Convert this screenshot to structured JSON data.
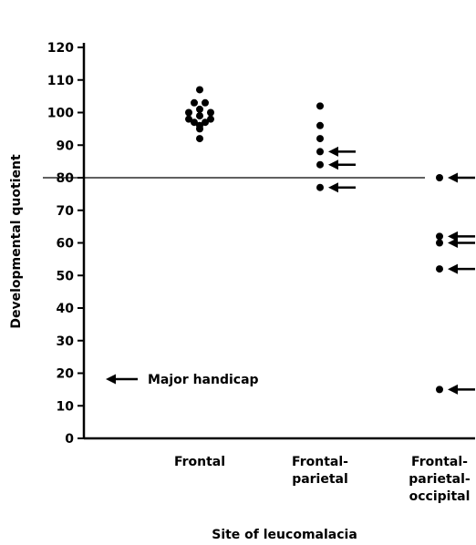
{
  "chart_data": {
    "type": "scatter",
    "xlabel": "Site of leucomalacia",
    "ylabel": "Developmental quotient",
    "ylim": [
      0,
      120
    ],
    "yticks": [
      0,
      10,
      20,
      30,
      40,
      50,
      60,
      70,
      80,
      90,
      100,
      110,
      120
    ],
    "categories": [
      {
        "label_lines": [
          "Frontal"
        ]
      },
      {
        "label_lines": [
          "Frontal-",
          "parietal"
        ]
      },
      {
        "label_lines": [
          "Frontal-",
          "parietal-",
          "occipital"
        ]
      }
    ],
    "reference_line": {
      "y": 80
    },
    "legend": {
      "text": "Major handicap",
      "symbol": "arrow",
      "placement": "bottom-left"
    },
    "points": [
      {
        "category": 0,
        "y": 107,
        "offset": 0,
        "major_handicap": false
      },
      {
        "category": 0,
        "y": 103,
        "offset": -1,
        "major_handicap": false
      },
      {
        "category": 0,
        "y": 103,
        "offset": 1,
        "major_handicap": false
      },
      {
        "category": 0,
        "y": 101,
        "offset": 0,
        "major_handicap": false
      },
      {
        "category": 0,
        "y": 100,
        "offset": -2,
        "major_handicap": false
      },
      {
        "category": 0,
        "y": 100,
        "offset": 2,
        "major_handicap": false
      },
      {
        "category": 0,
        "y": 99,
        "offset": 0,
        "major_handicap": false
      },
      {
        "category": 0,
        "y": 98,
        "offset": -2,
        "major_handicap": false
      },
      {
        "category": 0,
        "y": 98,
        "offset": 2,
        "major_handicap": false
      },
      {
        "category": 0,
        "y": 97,
        "offset": -1,
        "major_handicap": false
      },
      {
        "category": 0,
        "y": 97,
        "offset": 1,
        "major_handicap": false
      },
      {
        "category": 0,
        "y": 96,
        "offset": 0,
        "major_handicap": false
      },
      {
        "category": 0,
        "y": 95,
        "offset": 0,
        "major_handicap": false
      },
      {
        "category": 0,
        "y": 92,
        "offset": 0,
        "major_handicap": false
      },
      {
        "category": 1,
        "y": 102,
        "offset": 0,
        "major_handicap": false
      },
      {
        "category": 1,
        "y": 96,
        "offset": 0,
        "major_handicap": false
      },
      {
        "category": 1,
        "y": 92,
        "offset": 0,
        "major_handicap": false
      },
      {
        "category": 1,
        "y": 88,
        "offset": 0,
        "major_handicap": true
      },
      {
        "category": 1,
        "y": 84,
        "offset": 0,
        "major_handicap": true
      },
      {
        "category": 1,
        "y": 77,
        "offset": 0,
        "major_handicap": true
      },
      {
        "category": 2,
        "y": 80,
        "offset": 0,
        "major_handicap": true
      },
      {
        "category": 2,
        "y": 62,
        "offset": 0,
        "major_handicap": true
      },
      {
        "category": 2,
        "y": 60,
        "offset": 0,
        "major_handicap": true
      },
      {
        "category": 2,
        "y": 52,
        "offset": 0,
        "major_handicap": true
      },
      {
        "category": 2,
        "y": 15,
        "offset": 0,
        "major_handicap": true
      }
    ],
    "grid": false,
    "colors": {
      "marks": "#000000",
      "background": "#ffffff"
    }
  }
}
